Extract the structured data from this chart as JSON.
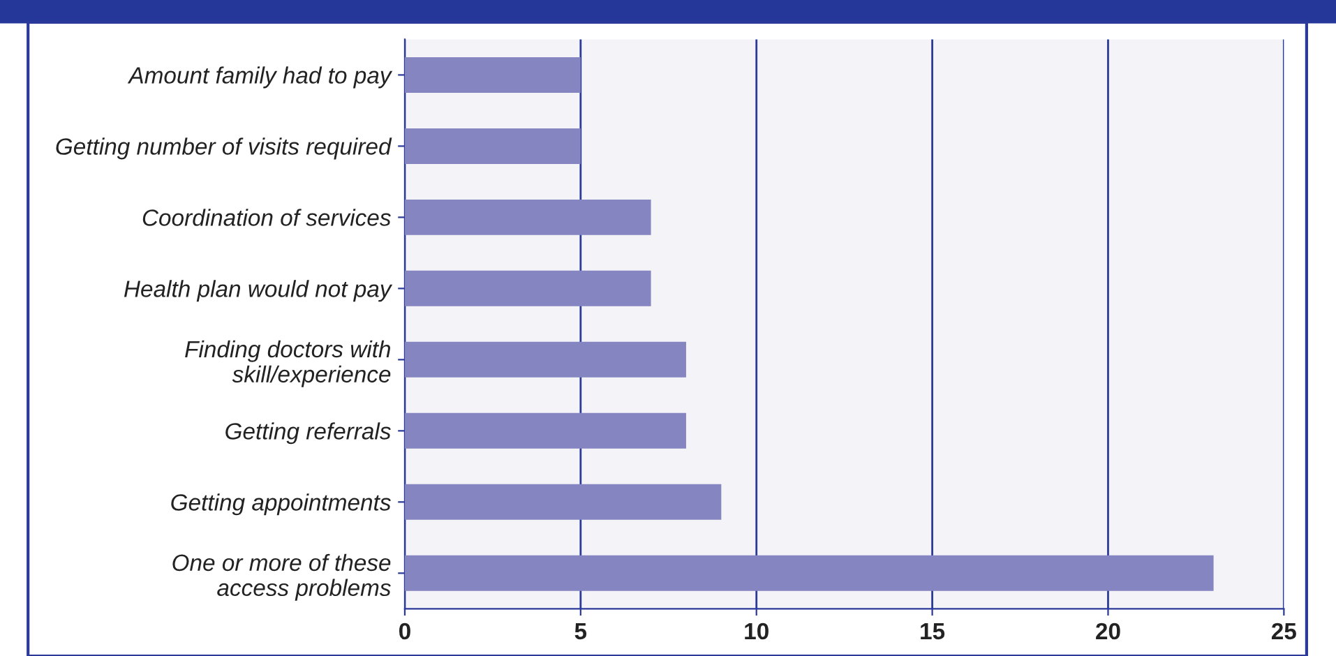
{
  "chart_data": {
    "type": "bar",
    "orientation": "horizontal",
    "categories": [
      "Amount family had to pay",
      "Getting number of visits required",
      "Coordination of services",
      "Health plan would not pay",
      "Finding doctors with\nskill/experience",
      "Getting referrals",
      "Getting appointments",
      "One or more of these\naccess problems"
    ],
    "values": [
      5,
      5,
      7,
      7,
      8,
      8,
      9,
      23
    ],
    "color": "#8585c1",
    "xlim": [
      0,
      25
    ],
    "xticks": [
      0,
      5,
      10,
      15,
      20,
      25
    ],
    "grid": "x"
  }
}
